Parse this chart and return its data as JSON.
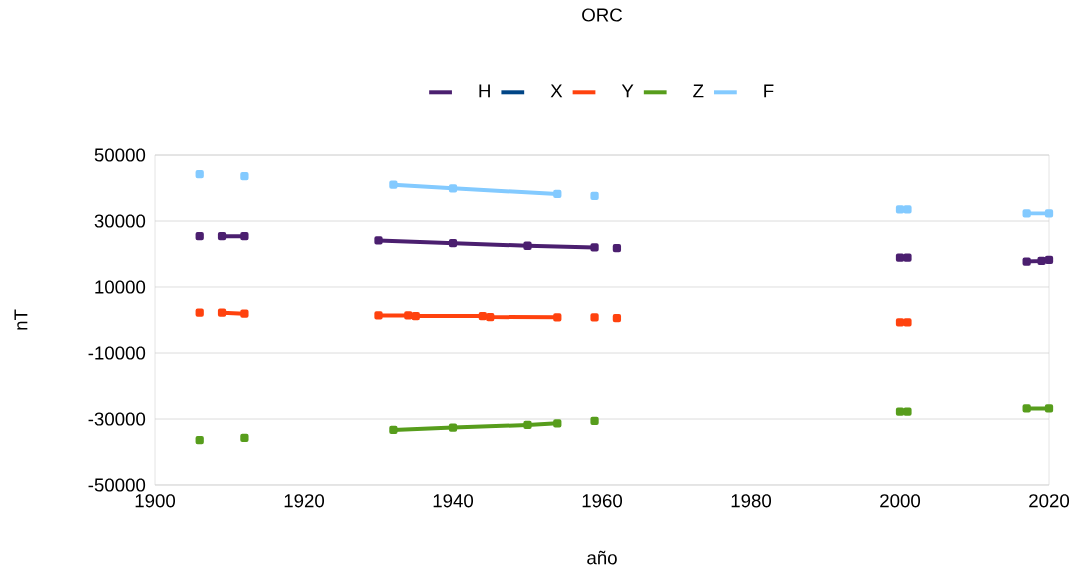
{
  "chart_data": {
    "type": "line",
    "title": "ORC",
    "xlabel": "año",
    "ylabel": "nT",
    "xlim": [
      1900,
      2020
    ],
    "xticks": [
      1900,
      1920,
      1940,
      1960,
      1980,
      2000,
      2020
    ],
    "ylim": [
      -50000,
      50000
    ],
    "yticks": [
      -50000,
      -30000,
      -10000,
      10000,
      30000,
      50000
    ],
    "grid": "y",
    "legend": "top",
    "marker": "square",
    "line_style": "solid",
    "series": [
      {
        "name": "H",
        "color": "#4b1f6f",
        "x": [
          1906,
          1907,
          1909,
          1912,
          1913,
          1930,
          1940,
          1950,
          1959,
          1960,
          1962,
          1963,
          2000,
          2001,
          2002,
          2017,
          2019,
          2020
        ],
        "values": [
          25400,
          null,
          25400,
          25400,
          null,
          24100,
          23300,
          22500,
          22000,
          null,
          21800,
          null,
          18900,
          18900,
          null,
          17700,
          17900,
          18200
        ]
      },
      {
        "name": "X",
        "color": "#004586"
      },
      {
        "name": "Y",
        "color": "#ff420e",
        "x": [
          1906,
          1907,
          1909,
          1912,
          1913,
          1930,
          1934,
          1935,
          1944,
          1945,
          1954,
          1955,
          1959,
          1960,
          1962,
          1963,
          2000,
          2001
        ],
        "values": [
          2200,
          null,
          2200,
          1900,
          null,
          1400,
          1400,
          1200,
          1200,
          900,
          800,
          null,
          800,
          null,
          600,
          null,
          -700,
          -700
        ]
      },
      {
        "name": "Z",
        "color": "#579d1c",
        "x": [
          1906,
          1907,
          1912,
          1913,
          1932,
          1940,
          1950,
          1954,
          1955,
          1959,
          1960,
          2000,
          2001,
          2002,
          2017,
          2020
        ],
        "values": [
          -36400,
          null,
          -35700,
          null,
          -33300,
          -32600,
          -31800,
          -31300,
          null,
          -30600,
          null,
          -27800,
          -27800,
          null,
          -26800,
          -26800
        ]
      },
      {
        "name": "F",
        "color": "#83caff",
        "x": [
          1906,
          1907,
          1912,
          1913,
          1932,
          1940,
          1954,
          1955,
          1959,
          1960,
          2000,
          2001,
          2002,
          2017,
          2020
        ],
        "values": [
          44200,
          null,
          43600,
          null,
          41000,
          39900,
          38200,
          null,
          37600,
          null,
          33500,
          33500,
          null,
          32300,
          32300
        ]
      }
    ]
  }
}
